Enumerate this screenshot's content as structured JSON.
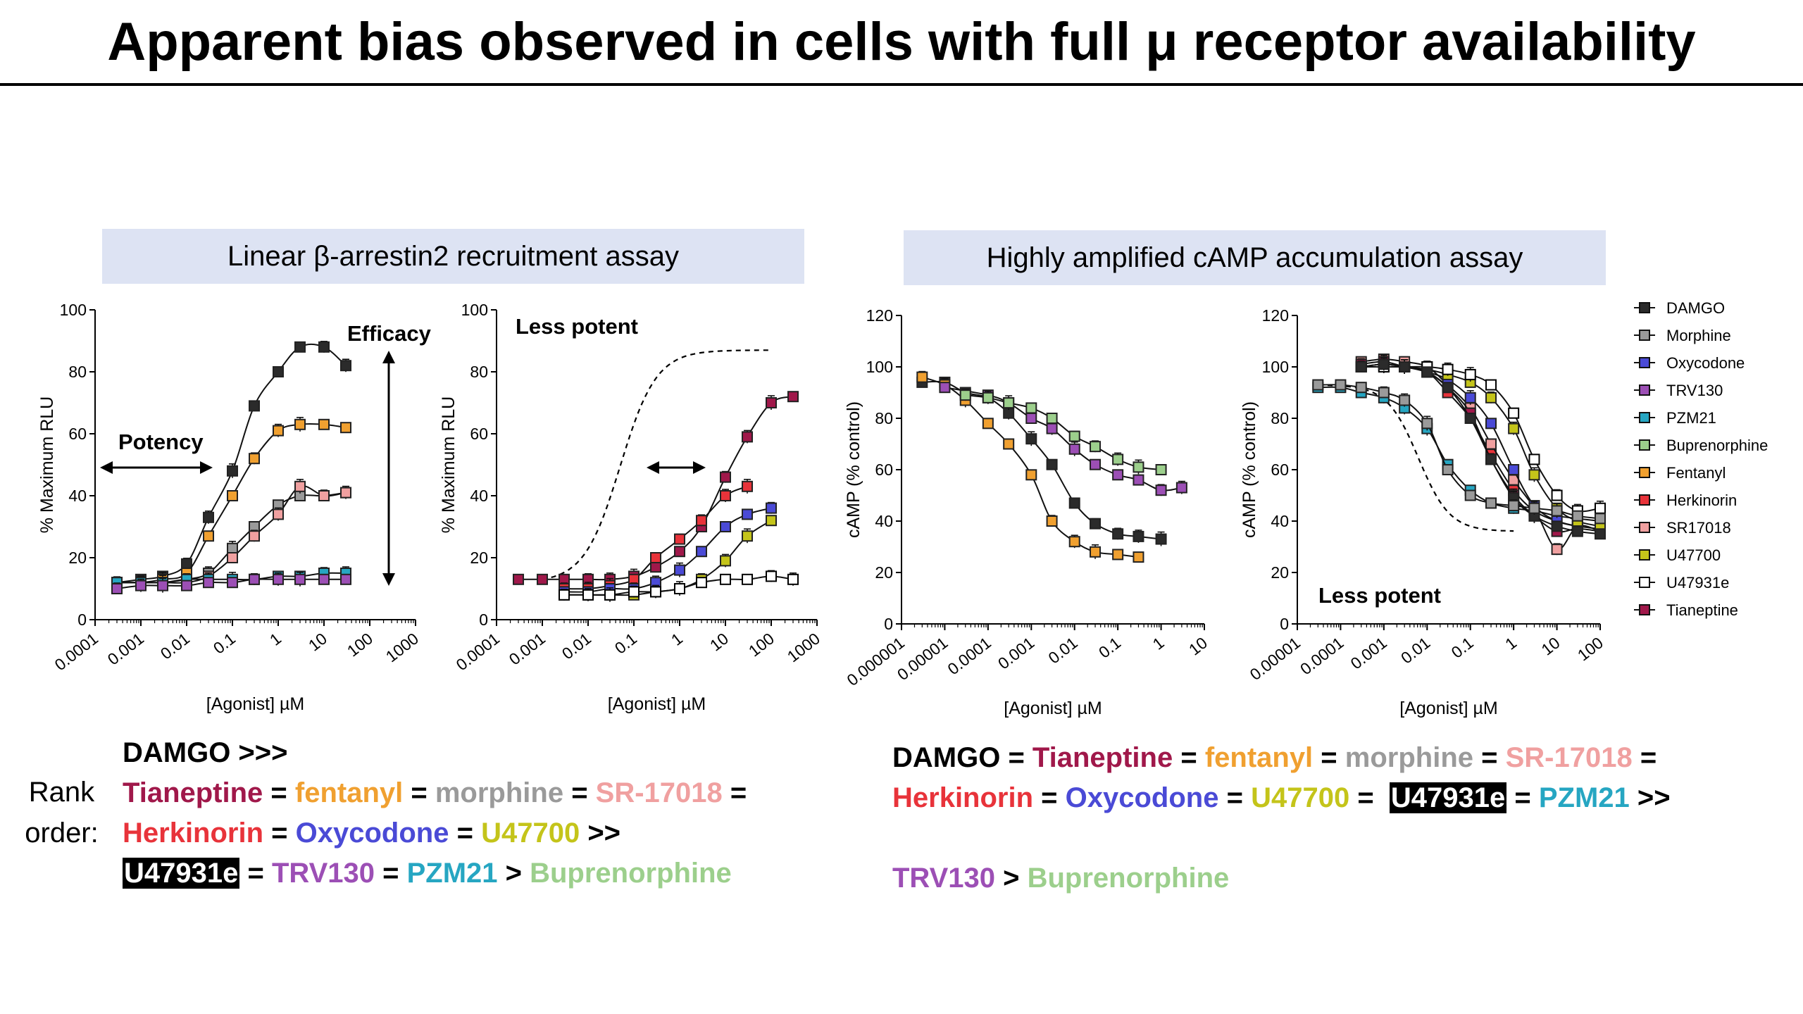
{
  "title": "Apparent bias observed in cells with full μ receptor availability",
  "panels": {
    "left_header": "Linear β-arrestin2 recruitment assay",
    "right_header": "Highly amplified cAMP accumulation assay"
  },
  "colors": {
    "DAMGO": "#2b2b2b",
    "Morphine": "#9a9a9a",
    "Oxycodone": "#4a4ad6",
    "TRV130": "#9c4fb5",
    "PZM21": "#26a6c2",
    "Buprenorphine": "#9ccf8c",
    "Fentanyl": "#f0a030",
    "Herkinorin": "#e8333a",
    "SR17018": "#f0a0a0",
    "U47700": "#c4c41a",
    "U47931e": "#ffffff",
    "Tianeptine": "#a0184a",
    "header_bg": "#dde3f3"
  },
  "legend": {
    "items": [
      {
        "name": "DAMGO",
        "key": "DAMGO"
      },
      {
        "name": "Morphine",
        "key": "Morphine"
      },
      {
        "name": "Oxycodone",
        "key": "Oxycodone"
      },
      {
        "name": "TRV130",
        "key": "TRV130"
      },
      {
        "name": "PZM21",
        "key": "PZM21"
      },
      {
        "name": "Buprenorphine",
        "key": "Buprenorphine"
      },
      {
        "name": "Fentanyl",
        "key": "Fentanyl"
      },
      {
        "name": "Herkinorin",
        "key": "Herkinorin"
      },
      {
        "name": "SR17018",
        "key": "SR17018"
      },
      {
        "name": "U47700",
        "key": "U47700"
      },
      {
        "name": "U47931e",
        "key": "U47931e"
      },
      {
        "name": "Tianeptine",
        "key": "Tianeptine"
      }
    ]
  },
  "rank": {
    "label_line1": "Rank",
    "label_line2": "order:",
    "left": [
      [
        {
          "t": "DAMGO >>>",
          "c": "#000000"
        }
      ],
      [
        {
          "t": "Tianeptine",
          "c": "#a0184a"
        },
        {
          "t": " = ",
          "c": "#000000"
        },
        {
          "t": "fentanyl",
          "c": "#f0a030"
        },
        {
          "t": " = ",
          "c": "#000000"
        },
        {
          "t": "morphine",
          "c": "#9a9a9a"
        },
        {
          "t": " = ",
          "c": "#000000"
        },
        {
          "t": "SR-17018",
          "c": "#f0a0a0"
        },
        {
          "t": " =",
          "c": "#000000"
        }
      ],
      [
        {
          "t": "Herkinorin",
          "c": "#e8333a"
        },
        {
          "t": " = ",
          "c": "#000000"
        },
        {
          "t": "Oxycodone",
          "c": "#4a4ad6"
        },
        {
          "t": " = ",
          "c": "#000000"
        },
        {
          "t": "U47700",
          "c": "#c4c41a"
        },
        {
          "t": " >>",
          "c": "#000000"
        }
      ],
      [
        {
          "t": "U47931e",
          "c": "#ffffff",
          "hl": true
        },
        {
          "t": " = ",
          "c": "#000000"
        },
        {
          "t": "TRV130",
          "c": "#9c4fb5"
        },
        {
          "t": " = ",
          "c": "#000000"
        },
        {
          "t": "PZM21",
          "c": "#26a6c2"
        },
        {
          "t": " > ",
          "c": "#000000"
        },
        {
          "t": "Buprenorphine",
          "c": "#9ccf8c"
        }
      ]
    ],
    "right": [
      [
        {
          "t": "DAMGO",
          "c": "#000000"
        },
        {
          "t": " = ",
          "c": "#000000"
        },
        {
          "t": "Tianeptine",
          "c": "#a0184a"
        },
        {
          "t": " = ",
          "c": "#000000"
        },
        {
          "t": "fentanyl",
          "c": "#f0a030"
        },
        {
          "t": " = ",
          "c": "#000000"
        },
        {
          "t": "morphine",
          "c": "#9a9a9a"
        },
        {
          "t": " = ",
          "c": "#000000"
        },
        {
          "t": "SR-17018",
          "c": "#f0a0a0"
        },
        {
          "t": " =",
          "c": "#000000"
        }
      ],
      [
        {
          "t": "Herkinorin",
          "c": "#e8333a"
        },
        {
          "t": " = ",
          "c": "#000000"
        },
        {
          "t": "Oxycodone",
          "c": "#4a4ad6"
        },
        {
          "t": " = ",
          "c": "#000000"
        },
        {
          "t": "U47700",
          "c": "#c4c41a"
        },
        {
          "t": " =  ",
          "c": "#000000"
        },
        {
          "t": "U47931e",
          "c": "#ffffff",
          "hl": true
        },
        {
          "t": " = ",
          "c": "#000000"
        },
        {
          "t": "PZM21",
          "c": "#26a6c2"
        },
        {
          "t": " >>",
          "c": "#000000"
        }
      ],
      [
        {
          "t": "",
          "c": "#000000"
        }
      ],
      [
        {
          "t": "TRV130",
          "c": "#9c4fb5"
        },
        {
          "t": " > ",
          "c": "#000000"
        },
        {
          "t": "Buprenorphine",
          "c": "#9ccf8c"
        }
      ]
    ]
  },
  "chart_data": [
    {
      "id": "c1",
      "type": "scatter",
      "xscale": "log",
      "xlim": [
        0.0001,
        1000
      ],
      "xticks": [
        "0.0001",
        "0.001",
        "0.01",
        "0.1",
        "1",
        "10",
        "100",
        "1000"
      ],
      "ylim": [
        0,
        100
      ],
      "yticks": [
        "0",
        "20",
        "40",
        "60",
        "80",
        "100"
      ],
      "xlabel": "[Agonist] µM",
      "ylabel": "% Maximum RLU",
      "annotations": [
        {
          "text": "Efficacy",
          "role": "label"
        },
        {
          "text": "Potency",
          "role": "label"
        }
      ],
      "series": [
        {
          "key": "DAMGO",
          "x": [
            0.0003,
            0.001,
            0.003,
            0.01,
            0.03,
            0.1,
            0.3,
            1,
            3,
            10,
            30
          ],
          "y": [
            12,
            13,
            14,
            18,
            33,
            48,
            69,
            80,
            88,
            88,
            82
          ]
        },
        {
          "key": "Fentanyl",
          "x": [
            0.0003,
            0.001,
            0.003,
            0.01,
            0.03,
            0.1,
            0.3,
            1,
            3,
            10,
            30
          ],
          "y": [
            12,
            12,
            13,
            15,
            27,
            40,
            52,
            61,
            63,
            63,
            62
          ]
        },
        {
          "key": "Morphine",
          "x": [
            0.0003,
            0.001,
            0.003,
            0.01,
            0.03,
            0.1,
            0.3,
            1,
            3,
            10,
            30
          ],
          "y": [
            12,
            12,
            12,
            13,
            15,
            23,
            30,
            37,
            40,
            40,
            41
          ]
        },
        {
          "key": "SR17018",
          "x": [
            0.0003,
            0.001,
            0.003,
            0.01,
            0.03,
            0.1,
            0.3,
            1,
            3,
            10,
            30
          ],
          "y": [
            12,
            12,
            12,
            12,
            14,
            20,
            27,
            34,
            43,
            40,
            41
          ]
        },
        {
          "key": "PZM21",
          "x": [
            0.0003,
            0.001,
            0.003,
            0.01,
            0.03,
            0.1,
            0.3,
            1,
            3,
            10,
            30
          ],
          "y": [
            12,
            12,
            12,
            13,
            13,
            13,
            13,
            14,
            14,
            15,
            15
          ]
        },
        {
          "key": "TRV130",
          "x": [
            0.0003,
            0.001,
            0.003,
            0.01,
            0.03,
            0.1,
            0.3,
            1,
            3,
            10,
            30
          ],
          "y": [
            10,
            11,
            11,
            11,
            12,
            12,
            13,
            13,
            13,
            13,
            13
          ]
        }
      ]
    },
    {
      "id": "c2",
      "type": "scatter",
      "xscale": "log",
      "xlim": [
        0.0001,
        1000
      ],
      "xticks": [
        "0.0001",
        "0.001",
        "0.01",
        "0.1",
        "1",
        "10",
        "100",
        "1000"
      ],
      "ylim": [
        0,
        100
      ],
      "yticks": [
        "0",
        "20",
        "40",
        "60",
        "80",
        "100"
      ],
      "xlabel": "[Agonist] µM",
      "ylabel": "% Maximum RLU",
      "annotations": [
        {
          "text": "Less potent",
          "role": "label"
        }
      ],
      "series": [
        {
          "key": "Tianeptine",
          "x": [
            0.0003,
            0.001,
            0.003,
            0.01,
            0.03,
            0.1,
            0.3,
            1,
            3,
            10,
            30,
            100,
            300
          ],
          "y": [
            13,
            13,
            13,
            13,
            13,
            14,
            17,
            22,
            30,
            46,
            59,
            70,
            72
          ]
        },
        {
          "key": "Herkinorin",
          "x": [
            0.003,
            0.01,
            0.03,
            0.1,
            0.3,
            1,
            3,
            10,
            30
          ],
          "y": [
            10,
            10,
            11,
            13,
            20,
            26,
            32,
            40,
            43
          ]
        },
        {
          "key": "Oxycodone",
          "x": [
            0.003,
            0.01,
            0.03,
            0.1,
            0.3,
            1,
            3,
            10,
            30,
            100
          ],
          "y": [
            9,
            9,
            10,
            10,
            12,
            16,
            22,
            30,
            34,
            36
          ]
        },
        {
          "key": "U47700",
          "x": [
            0.003,
            0.01,
            0.03,
            0.1,
            0.3,
            1,
            3,
            10,
            30,
            100
          ],
          "y": [
            8,
            8,
            8,
            8,
            9,
            10,
            13,
            19,
            27,
            32
          ]
        },
        {
          "key": "U47931e",
          "x": [
            0.003,
            0.01,
            0.03,
            0.1,
            0.3,
            1,
            3,
            10,
            30,
            100,
            300
          ],
          "y": [
            8,
            8,
            8,
            9,
            9,
            10,
            12,
            13,
            13,
            14,
            13
          ]
        }
      ]
    },
    {
      "id": "c3",
      "type": "scatter",
      "xscale": "log",
      "xlim": [
        1e-06,
        10
      ],
      "xticks": [
        "0.000001",
        "0.00001",
        "0.0001",
        "0.001",
        "0.01",
        "0.1",
        "1",
        "10"
      ],
      "ylim": [
        0,
        120
      ],
      "yticks": [
        "0",
        "20",
        "40",
        "60",
        "80",
        "100",
        "120"
      ],
      "xlabel": "[Agonist] µM",
      "ylabel": "cAMP (% control)",
      "annotations": [],
      "series": [
        {
          "key": "DAMGO",
          "x": [
            3e-06,
            1e-05,
            3e-05,
            0.0001,
            0.0003,
            0.001,
            0.003,
            0.01,
            0.03,
            0.1,
            0.3,
            1
          ],
          "y": [
            94,
            94,
            90,
            88,
            82,
            72,
            62,
            47,
            39,
            35,
            34,
            33
          ]
        },
        {
          "key": "Fentanyl",
          "x": [
            3e-06,
            1e-05,
            3e-05,
            0.0001,
            0.0003,
            0.001,
            0.003,
            0.01,
            0.03,
            0.1,
            0.3
          ],
          "y": [
            96,
            93,
            87,
            78,
            70,
            58,
            40,
            32,
            28,
            27,
            26
          ]
        },
        {
          "key": "TRV130",
          "x": [
            1e-05,
            0.0001,
            0.0003,
            0.001,
            0.003,
            0.01,
            0.03,
            0.1,
            0.3,
            1,
            3
          ],
          "y": [
            92,
            89,
            86,
            80,
            76,
            68,
            62,
            58,
            56,
            52,
            53
          ]
        },
        {
          "key": "Buprenorphine",
          "x": [
            3e-05,
            0.0001,
            0.0003,
            0.001,
            0.003,
            0.01,
            0.03,
            0.1,
            0.3,
            1
          ],
          "y": [
            89,
            88,
            86,
            84,
            80,
            73,
            69,
            64,
            61,
            60
          ]
        }
      ]
    },
    {
      "id": "c4",
      "type": "scatter",
      "xscale": "log",
      "xlim": [
        1e-05,
        100
      ],
      "xticks": [
        "0.00001",
        "0.0001",
        "0.001",
        "0.01",
        "0.1",
        "1",
        "10",
        "100"
      ],
      "ylim": [
        0,
        120
      ],
      "yticks": [
        "0",
        "20",
        "40",
        "60",
        "80",
        "100",
        "120"
      ],
      "xlabel": "[Agonist] µM",
      "ylabel": "cAMP (% control)",
      "annotations": [
        {
          "text": "Less potent",
          "role": "label"
        }
      ],
      "series": [
        {
          "key": "PZM21",
          "x": [
            3e-05,
            0.0001,
            0.0003,
            0.001,
            0.003,
            0.01,
            0.03,
            0.1,
            0.3,
            1,
            3,
            10,
            30,
            100
          ],
          "y": [
            92,
            92,
            90,
            88,
            84,
            76,
            62,
            52,
            47,
            45,
            44,
            42,
            41,
            40
          ]
        },
        {
          "key": "Herkinorin",
          "x": [
            0.0003,
            0.001,
            0.003,
            0.01,
            0.03,
            0.1,
            0.3,
            1,
            3,
            10,
            30,
            100
          ],
          "y": [
            100,
            101,
            100,
            98,
            90,
            80,
            66,
            52,
            44,
            40,
            38,
            37
          ]
        },
        {
          "key": "SR17018",
          "x": [
            0.0003,
            0.001,
            0.003,
            0.01,
            0.03,
            0.1,
            0.3,
            1,
            3,
            10,
            30,
            100
          ],
          "y": [
            102,
            103,
            102,
            100,
            93,
            84,
            70,
            56,
            45,
            29,
            38,
            36
          ]
        },
        {
          "key": "Tianeptine",
          "x": [
            0.0003,
            0.001,
            0.003,
            0.01,
            0.03,
            0.1,
            0.3,
            1,
            3,
            10,
            30,
            100
          ],
          "y": [
            101,
            102,
            100,
            98,
            92,
            82,
            64,
            50,
            42,
            36,
            37,
            36
          ]
        },
        {
          "key": "Oxycodone",
          "x": [
            0.0003,
            0.001,
            0.003,
            0.01,
            0.03,
            0.1,
            0.3,
            1,
            3,
            10,
            30
          ],
          "y": [
            100,
            101,
            100,
            98,
            95,
            88,
            78,
            60,
            46,
            40,
            38
          ]
        },
        {
          "key": "U47700",
          "x": [
            0.0003,
            0.001,
            0.003,
            0.01,
            0.03,
            0.1,
            0.3,
            1,
            3,
            10,
            30,
            100
          ],
          "y": [
            100,
            100,
            100,
            99,
            97,
            94,
            88,
            76,
            58,
            45,
            40,
            38
          ]
        },
        {
          "key": "U47931e",
          "x": [
            0.0003,
            0.001,
            0.003,
            0.01,
            0.03,
            0.1,
            0.3,
            1,
            3,
            10,
            30,
            100
          ],
          "y": [
            100,
            100,
            100,
            100,
            99,
            97,
            93,
            82,
            64,
            50,
            44,
            45
          ]
        },
        {
          "key": "DAMGO",
          "x": [
            0.0003,
            0.001,
            0.003,
            0.01,
            0.03,
            0.1,
            0.3,
            1,
            3,
            10,
            30,
            100
          ],
          "y": [
            100,
            101,
            100,
            98,
            92,
            80,
            64,
            49,
            42,
            38,
            36,
            35
          ]
        },
        {
          "key": "Morphine",
          "x": [
            3e-05,
            0.0001,
            0.0003,
            0.001,
            0.003,
            0.01,
            0.03,
            0.1,
            0.3,
            1,
            3,
            10,
            30,
            100
          ],
          "y": [
            93,
            93,
            92,
            90,
            87,
            78,
            60,
            50,
            47,
            46,
            45,
            44,
            42,
            41
          ]
        }
      ]
    }
  ]
}
